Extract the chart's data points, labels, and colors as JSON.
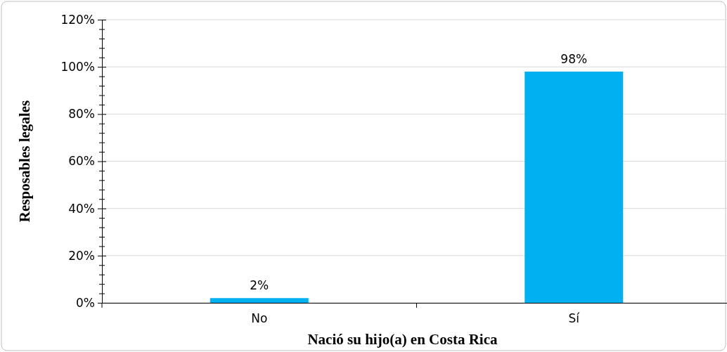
{
  "chart_data": {
    "type": "bar",
    "xlabel": "Nació su hijo(a) en Costa Rica",
    "ylabel": "Resposables legales",
    "categories": [
      "No",
      "Sí"
    ],
    "values": [
      2,
      98
    ],
    "color": "#00b0f0",
    "value_labels": [
      "2%",
      "98%"
    ],
    "ylim": [
      0,
      120
    ],
    "yticks": [
      {
        "value": 0,
        "label": "0%"
      },
      {
        "value": 4,
        "label": null
      },
      {
        "value": 8,
        "label": null
      },
      {
        "value": 12,
        "label": null
      },
      {
        "value": 16,
        "label": null
      },
      {
        "value": 20,
        "label": "20%"
      },
      {
        "value": 24,
        "label": null
      },
      {
        "value": 28,
        "label": null
      },
      {
        "value": 32,
        "label": null
      },
      {
        "value": 36,
        "label": null
      },
      {
        "value": 40,
        "label": "40%"
      },
      {
        "value": 44,
        "label": null
      },
      {
        "value": 48,
        "label": null
      },
      {
        "value": 52,
        "label": null
      },
      {
        "value": 56,
        "label": null
      },
      {
        "value": 60,
        "label": "60%"
      },
      {
        "value": 64,
        "label": null
      },
      {
        "value": 68,
        "label": null
      },
      {
        "value": 72,
        "label": null
      },
      {
        "value": 76,
        "label": null
      },
      {
        "value": 80,
        "label": "80%"
      },
      {
        "value": 84,
        "label": null
      },
      {
        "value": 88,
        "label": null
      },
      {
        "value": 92,
        "label": null
      },
      {
        "value": 96,
        "label": null
      },
      {
        "value": 100,
        "label": "100%"
      },
      {
        "value": 104,
        "label": null
      },
      {
        "value": 108,
        "label": null
      },
      {
        "value": 112,
        "label": null
      },
      {
        "value": 116,
        "label": null
      },
      {
        "value": 120,
        "label": "120%"
      }
    ],
    "grid": "y"
  }
}
